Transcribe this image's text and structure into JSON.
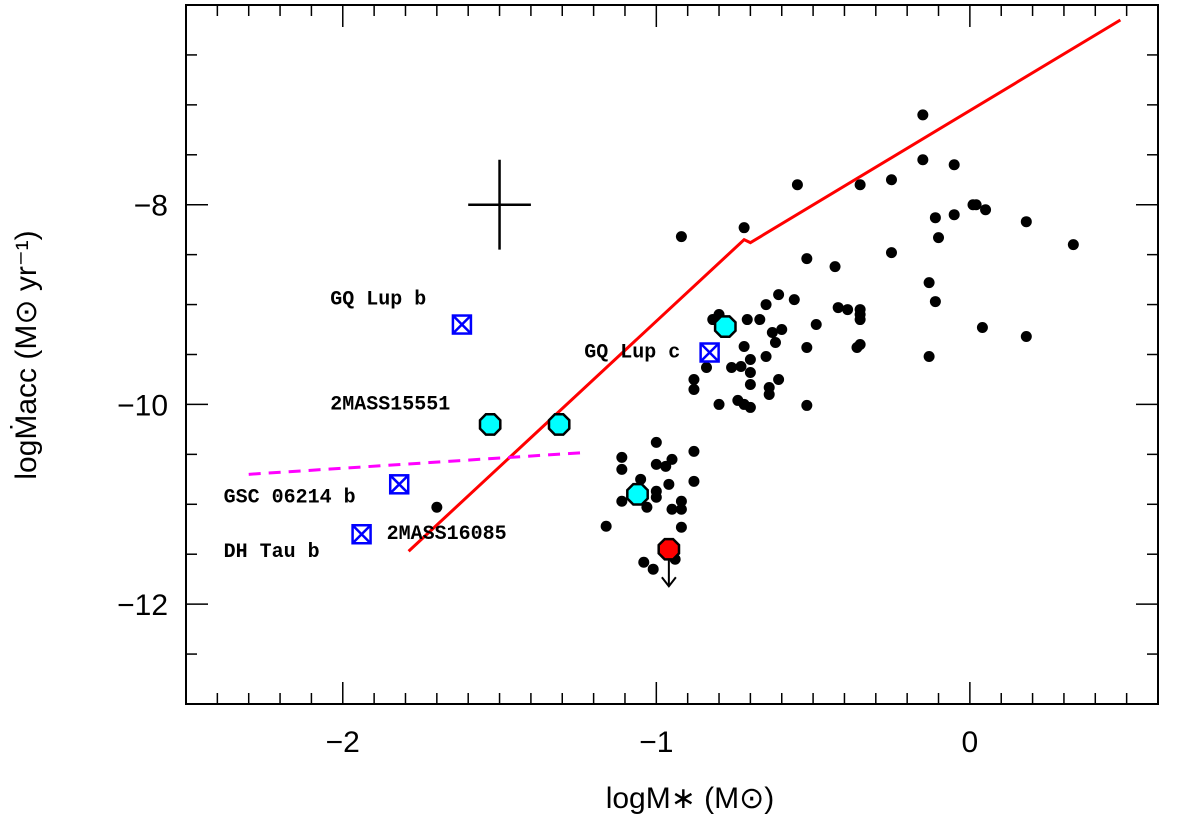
{
  "chart_data": {
    "type": "scatter",
    "xlabel": "logM∗ (M⊙)",
    "ylabel": "logṀacc (M⊙ yr⁻¹)",
    "xlim": [
      -2.5,
      0.6
    ],
    "ylim": [
      -13,
      -6
    ],
    "x_ticks": [
      -2,
      -1,
      0
    ],
    "x_tick_labels": [
      "−2",
      "−1",
      "0"
    ],
    "y_ticks": [
      -12,
      -10,
      -8
    ],
    "y_tick_labels": [
      "−12",
      "−10",
      "−8"
    ],
    "colors": {
      "black_dots": "#000000",
      "cyan_markers": "#00ffff",
      "red_marker": "#ff0000",
      "blue_markers": "#0000ff",
      "fit_line": "#ff0000",
      "dashed_line": "#ff00ff"
    },
    "series": [
      {
        "name": "objects",
        "marker": "filled-circle",
        "points": [
          [
            -0.15,
            -7.1
          ],
          [
            -0.15,
            -7.55
          ],
          [
            -0.05,
            -7.6
          ],
          [
            -0.25,
            -7.75
          ],
          [
            -0.35,
            -7.8
          ],
          [
            -0.55,
            -7.8
          ],
          [
            -0.72,
            -8.23
          ],
          [
            -0.92,
            -8.32
          ],
          [
            0.01,
            -8.0
          ],
          [
            0.02,
            -8.0
          ],
          [
            0.05,
            -8.05
          ],
          [
            -0.05,
            -8.1
          ],
          [
            -0.11,
            -8.13
          ],
          [
            0.18,
            -8.17
          ],
          [
            -0.1,
            -8.33
          ],
          [
            0.33,
            -8.4
          ],
          [
            -0.25,
            -8.48
          ],
          [
            -0.52,
            -8.54
          ],
          [
            -0.43,
            -8.62
          ],
          [
            -0.13,
            -8.78
          ],
          [
            -0.11,
            -8.97
          ],
          [
            -0.61,
            -8.9
          ],
          [
            -0.56,
            -8.95
          ],
          [
            -0.65,
            -9.0
          ],
          [
            -0.82,
            -9.15
          ],
          [
            -0.8,
            -9.1
          ],
          [
            -0.67,
            -9.15
          ],
          [
            -0.77,
            -9.18
          ],
          [
            -0.71,
            -9.15
          ],
          [
            -0.6,
            -9.25
          ],
          [
            -0.63,
            -9.28
          ],
          [
            -0.49,
            -9.2
          ],
          [
            -0.39,
            -9.05
          ],
          [
            -0.35,
            -9.05
          ],
          [
            -0.35,
            -9.1
          ],
          [
            -0.35,
            -9.15
          ],
          [
            -0.42,
            -9.03
          ],
          [
            -0.52,
            -9.43
          ],
          [
            -0.35,
            -9.4
          ],
          [
            -0.36,
            -9.43
          ],
          [
            0.04,
            -9.23
          ],
          [
            0.18,
            -9.32
          ],
          [
            -0.13,
            -9.52
          ],
          [
            -0.62,
            -9.38
          ],
          [
            -0.65,
            -9.52
          ],
          [
            -0.72,
            -9.42
          ],
          [
            -0.7,
            -9.55
          ],
          [
            -0.73,
            -9.62
          ],
          [
            -0.76,
            -9.63
          ],
          [
            -0.84,
            -9.63
          ],
          [
            -0.7,
            -9.68
          ],
          [
            -0.88,
            -9.75
          ],
          [
            -0.7,
            -9.8
          ],
          [
            -0.61,
            -9.75
          ],
          [
            -0.64,
            -9.83
          ],
          [
            -0.64,
            -9.9
          ],
          [
            -0.88,
            -9.85
          ],
          [
            -0.8,
            -10.0
          ],
          [
            -0.74,
            -9.96
          ],
          [
            -0.72,
            -10.0
          ],
          [
            -0.7,
            -10.03
          ],
          [
            -0.52,
            -10.01
          ],
          [
            -1.0,
            -10.38
          ],
          [
            -0.95,
            -10.55
          ],
          [
            -0.97,
            -10.62
          ],
          [
            -1.0,
            -10.6
          ],
          [
            -1.05,
            -10.75
          ],
          [
            -1.11,
            -10.53
          ],
          [
            -1.11,
            -10.65
          ],
          [
            -1.11,
            -10.97
          ],
          [
            -1.0,
            -10.87
          ],
          [
            -1.0,
            -10.93
          ],
          [
            -0.96,
            -10.8
          ],
          [
            -0.88,
            -10.47
          ],
          [
            -0.88,
            -10.77
          ],
          [
            -0.92,
            -10.97
          ],
          [
            -0.92,
            -11.05
          ],
          [
            -0.95,
            -11.05
          ],
          [
            -1.03,
            -11.03
          ],
          [
            -1.16,
            -11.22
          ],
          [
            -0.92,
            -11.23
          ],
          [
            -1.01,
            -11.65
          ],
          [
            -1.04,
            -11.58
          ],
          [
            -0.94,
            -11.55
          ],
          [
            -1.7,
            -11.03
          ]
        ]
      },
      {
        "name": "cyan objects",
        "marker": "octagon",
        "points": [
          [
            -0.78,
            -9.22
          ],
          [
            -1.53,
            -10.2
          ],
          [
            -1.31,
            -10.2
          ],
          [
            -1.06,
            -10.9
          ]
        ]
      },
      {
        "name": "upper limit",
        "marker": "octagon",
        "points": [
          [
            -0.96,
            -11.45
          ]
        ]
      },
      {
        "name": "companions",
        "marker": "boxed-x",
        "points": [
          [
            -1.62,
            -9.2
          ],
          [
            -0.83,
            -9.48
          ],
          [
            -1.82,
            -10.8
          ],
          [
            -1.94,
            -11.3
          ]
        ]
      }
    ],
    "fit_line": [
      [
        -1.79,
        -11.47
      ],
      [
        -0.72,
        -8.35
      ],
      [
        -0.7,
        -8.38
      ],
      [
        0.48,
        -6.15
      ]
    ],
    "dashed_line": [
      [
        -2.3,
        -10.7
      ],
      [
        -1.22,
        -10.48
      ]
    ],
    "error_bar": {
      "x": -1.5,
      "y": -8.0,
      "x_err": 0.1,
      "y_err": 0.45
    },
    "annotations": [
      {
        "text": "GQ Lup b",
        "x": -2.04,
        "y": -9.0,
        "anchor": "start"
      },
      {
        "text": "GQ Lup c",
        "x": -1.23,
        "y": -9.53,
        "anchor": "start"
      },
      {
        "text": "2MASS15551",
        "x": -2.04,
        "y": -10.05,
        "anchor": "start"
      },
      {
        "text": "GSC 06214 b",
        "x": -2.38,
        "y": -10.98,
        "anchor": "start"
      },
      {
        "text": "2MASS16085",
        "x": -1.86,
        "y": -11.35,
        "anchor": "start"
      },
      {
        "text": "DH Tau b",
        "x": -2.38,
        "y": -11.53,
        "anchor": "start"
      }
    ]
  }
}
